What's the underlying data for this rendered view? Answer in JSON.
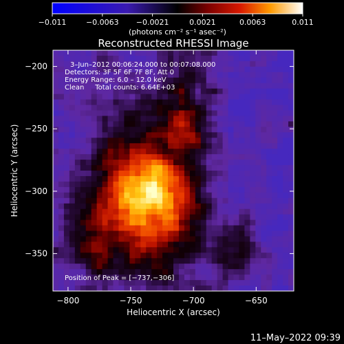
{
  "chart_data": {
    "type": "heatmap",
    "title": "Reconstructed RHESSI Image",
    "colorbar": {
      "ticks": [
        "−0.011",
        "−0.0063",
        "−0.0021",
        "0.0021",
        "0.0063",
        "0.011"
      ],
      "range": [
        -0.011,
        0.011
      ],
      "unit_label": "(photons cm⁻² s⁻¹ asec⁻²)"
    },
    "xlabel": "Heliocentric X (arcsec)",
    "ylabel": "Heliocentric Y (arcsec)",
    "xlim": [
      -812,
      -620
    ],
    "ylim": [
      -380,
      -187
    ],
    "x_ticks": [
      {
        "value": -800,
        "label": "−800"
      },
      {
        "value": -750,
        "label": "−750"
      },
      {
        "value": -700,
        "label": "−700"
      },
      {
        "value": -650,
        "label": "−650"
      }
    ],
    "y_ticks": [
      {
        "value": -200,
        "label": "−200"
      },
      {
        "value": -250,
        "label": "−250"
      },
      {
        "value": -300,
        "label": "−300"
      },
      {
        "value": -350,
        "label": "−350"
      }
    ],
    "annotations": [
      "3–Jun–2012 00:06:24.000 to 00:07:08.000",
      "Detectors: 3F 5F 6F 7F 8F, Att 0",
      "Energy Range: 6.0 – 12.0 keV",
      "Clean     Total counts: 6.64E+03"
    ],
    "peak_label": "Position of Peak = [−737,−306]",
    "peak": {
      "x": -737,
      "y": -306
    },
    "colors": {
      "min": "#0000ff",
      "mid": "#000000",
      "max": "#ffffff"
    }
  },
  "footer_timestamp": "11–May–2022 09:39"
}
